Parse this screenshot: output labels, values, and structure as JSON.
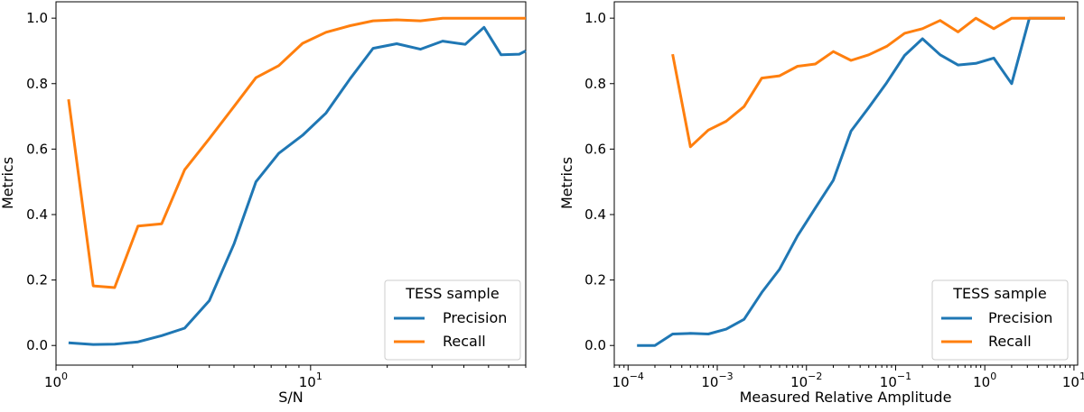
{
  "colors": {
    "precision": "#1f77b4",
    "recall": "#ff7f0e"
  },
  "chart_data": [
    {
      "type": "line",
      "xscale": "log",
      "xlim": [
        1,
        70
      ],
      "ylim": [
        -0.06,
        1.05
      ],
      "xlabel": "S/N",
      "ylabel": "Metrics",
      "xticks": [
        {
          "value": 1,
          "label": "10",
          "exp": "0"
        },
        {
          "value": 10,
          "label": "10",
          "exp": "1"
        }
      ],
      "yticks": [
        "0.0",
        "0.2",
        "0.4",
        "0.6",
        "0.8",
        "1.0"
      ],
      "legend": {
        "title": "TESS sample",
        "location": "lower right"
      },
      "series": [
        {
          "name": "Precision",
          "x": [
            1.12,
            1.4,
            1.7,
            2.1,
            2.6,
            3.2,
            4.0,
            5.0,
            6.1,
            7.5,
            9.3,
            11.5,
            14.3,
            17.6,
            21.8,
            27.0,
            33.0,
            40.5,
            48.0,
            56.0,
            66.0,
            70.0
          ],
          "y": [
            0.008,
            0.003,
            0.004,
            0.011,
            0.03,
            0.053,
            0.137,
            0.31,
            0.5,
            0.587,
            0.642,
            0.71,
            0.815,
            0.908,
            0.922,
            0.905,
            0.93,
            0.92,
            0.972,
            0.888,
            0.89,
            0.9
          ]
        },
        {
          "name": "Recall",
          "x": [
            1.12,
            1.4,
            1.7,
            2.1,
            2.6,
            3.2,
            4.0,
            5.0,
            6.1,
            7.5,
            9.3,
            11.5,
            14.3,
            17.6,
            21.8,
            27.0,
            33.0,
            40.5,
            48.0,
            56.0,
            66.0,
            70.0
          ],
          "y": [
            0.752,
            0.182,
            0.177,
            0.365,
            0.372,
            0.537,
            0.632,
            0.73,
            0.818,
            0.855,
            0.923,
            0.957,
            0.977,
            0.992,
            0.995,
            0.992,
            1.0,
            1.0,
            1.0,
            1.0,
            1.0,
            1.0
          ]
        }
      ]
    },
    {
      "type": "line",
      "xscale": "log",
      "xlim": [
        7e-05,
        11
      ],
      "ylim": [
        -0.06,
        1.05
      ],
      "xlabel": "Measured Relative Amplitude",
      "ylabel": "Metrics",
      "xticks": [
        {
          "value": 0.0001,
          "label": "10",
          "exp": "−4"
        },
        {
          "value": 0.001,
          "label": "10",
          "exp": "−3"
        },
        {
          "value": 0.01,
          "label": "10",
          "exp": "−2"
        },
        {
          "value": 0.1,
          "label": "10",
          "exp": "−1"
        },
        {
          "value": 1,
          "label": "10",
          "exp": "0"
        },
        {
          "value": 10,
          "label": "10",
          "exp": "1"
        }
      ],
      "yticks": [
        "0.0",
        "0.2",
        "0.4",
        "0.6",
        "0.8",
        "1.0"
      ],
      "legend": {
        "title": "TESS sample",
        "location": "lower right"
      },
      "series": [
        {
          "name": "Precision",
          "x": [
            0.000126,
            0.0002,
            0.000316,
            0.0005,
            0.000794,
            0.00126,
            0.002,
            0.00316,
            0.005,
            0.00794,
            0.0126,
            0.02,
            0.0316,
            0.05,
            0.0794,
            0.126,
            0.2,
            0.316,
            0.5,
            0.794,
            1.26,
            2.0,
            3.16,
            5.0,
            7.94
          ],
          "y": [
            0.0,
            0.0,
            0.035,
            0.037,
            0.035,
            0.05,
            0.08,
            0.162,
            0.233,
            0.335,
            0.42,
            0.505,
            0.655,
            0.727,
            0.803,
            0.886,
            0.937,
            0.888,
            0.857,
            0.862,
            0.878,
            0.8,
            1.0,
            1.0,
            1.0
          ]
        },
        {
          "name": "Recall",
          "x": [
            0.000316,
            0.0005,
            0.000794,
            0.00126,
            0.002,
            0.00316,
            0.005,
            0.00794,
            0.0126,
            0.02,
            0.0316,
            0.05,
            0.0794,
            0.126,
            0.2,
            0.316,
            0.5,
            0.794,
            1.26,
            2.0,
            3.16,
            5.0,
            7.94
          ],
          "y": [
            0.89,
            0.607,
            0.658,
            0.685,
            0.73,
            0.817,
            0.824,
            0.853,
            0.86,
            0.898,
            0.871,
            0.888,
            0.914,
            0.954,
            0.968,
            0.993,
            0.958,
            1.0,
            0.968,
            1.0,
            1.0,
            1.0,
            1.0
          ]
        }
      ]
    }
  ]
}
